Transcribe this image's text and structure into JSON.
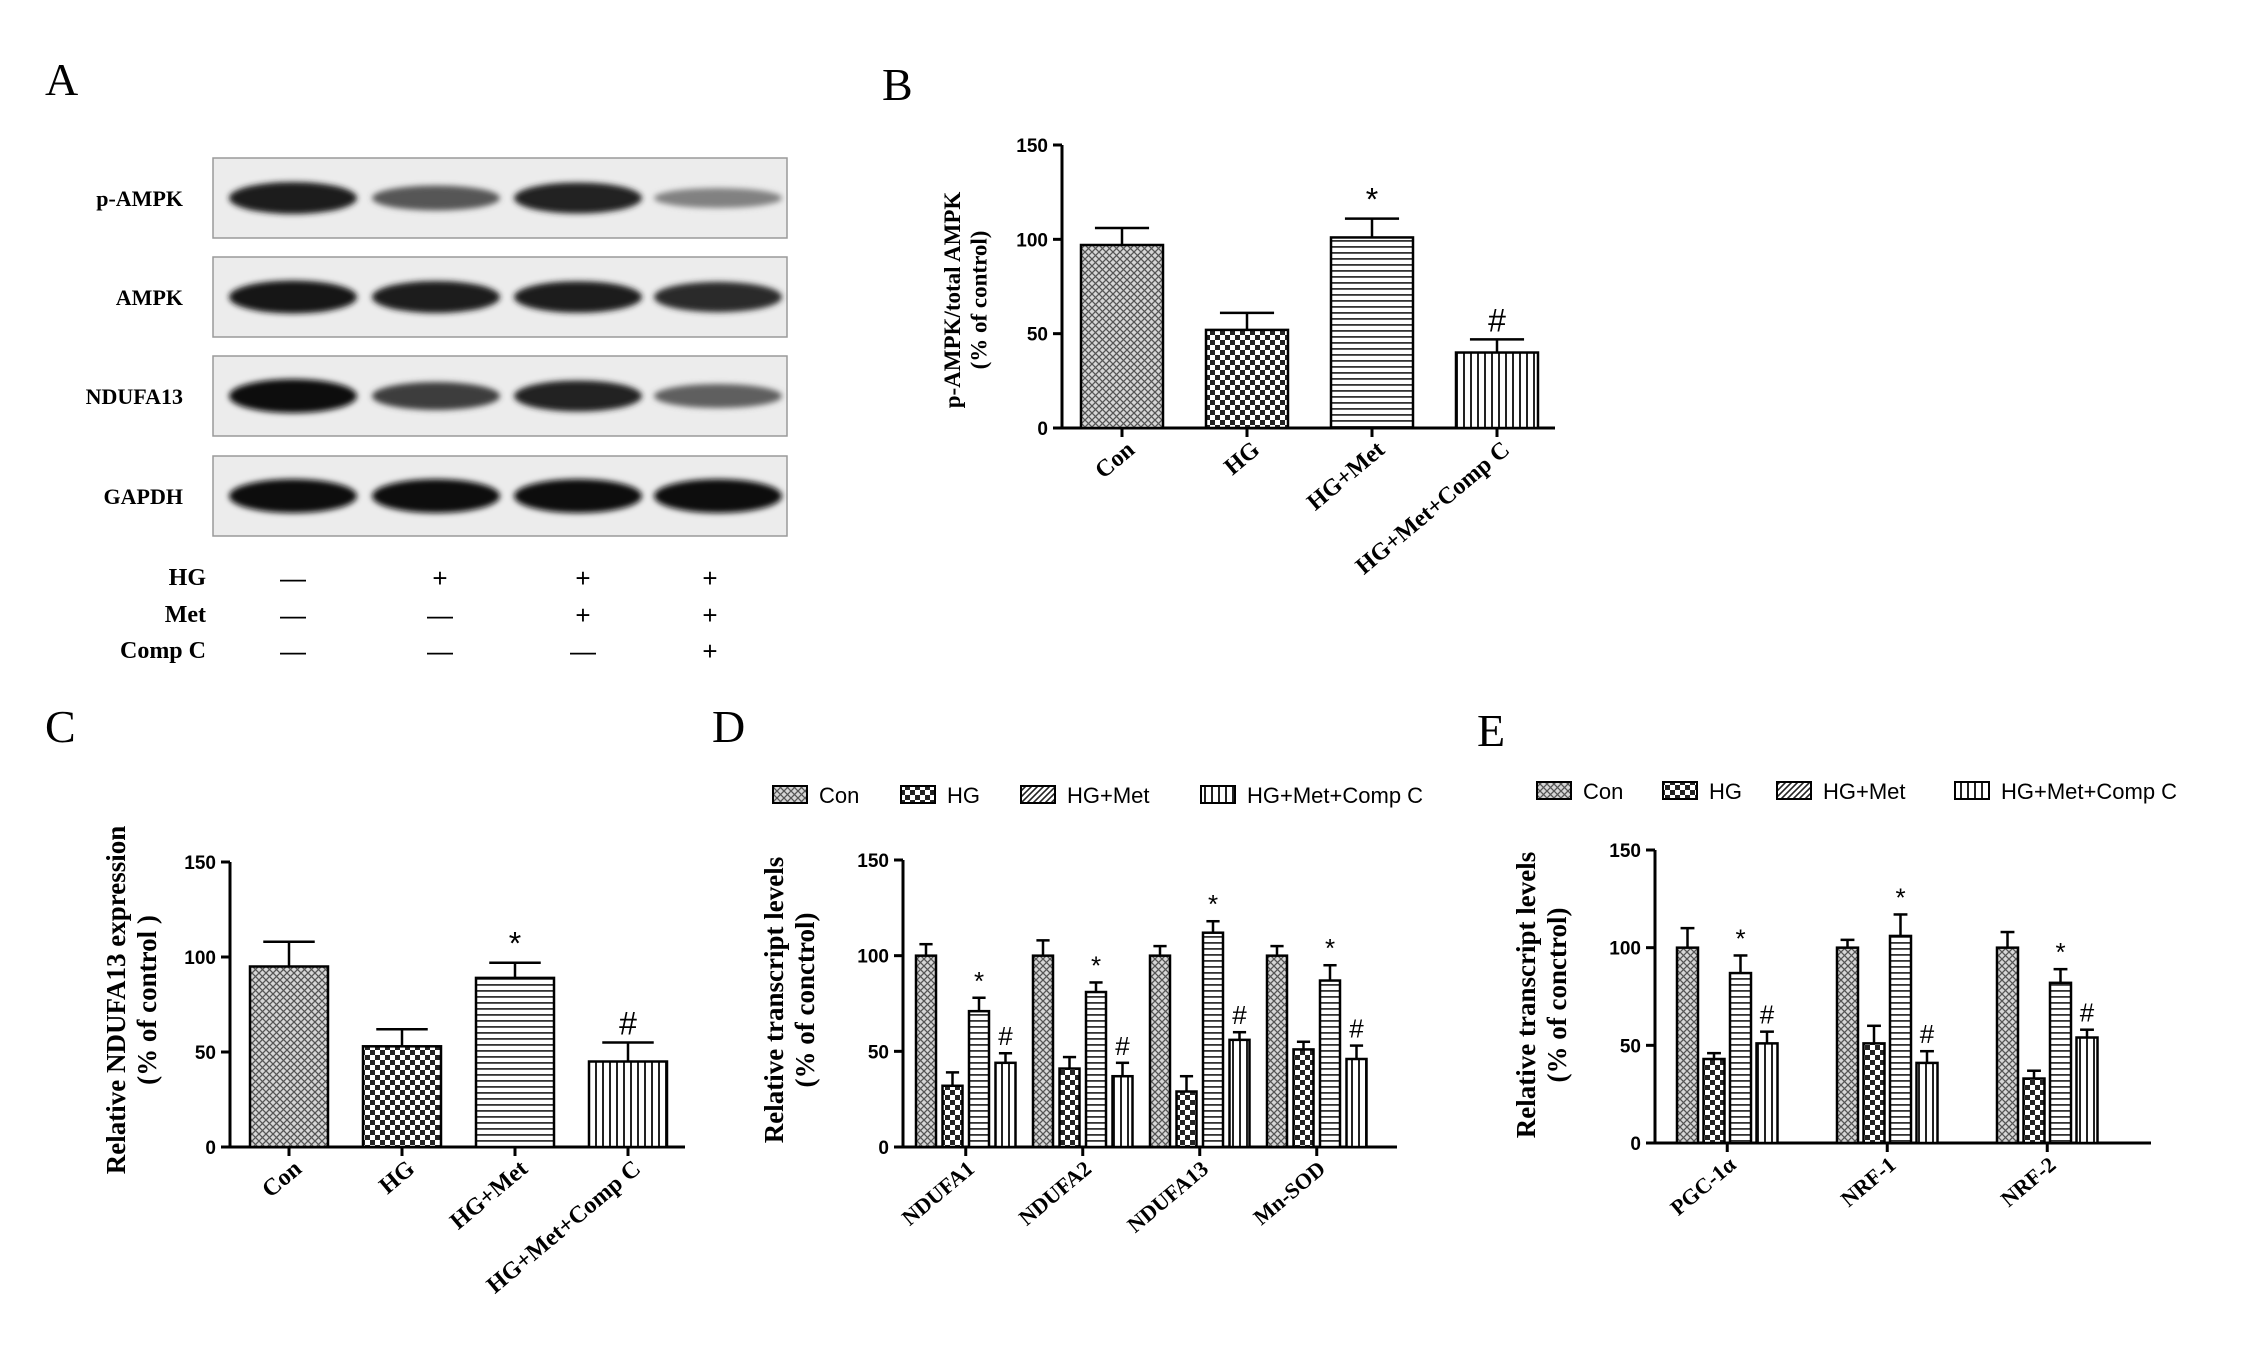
{
  "panels": {
    "A": {
      "letter": "A",
      "blot_labels": [
        "p-AMPK",
        "AMPK",
        "NDUFA13",
        "GAPDH"
      ],
      "treatments": [
        {
          "name": "HG",
          "signs": [
            "—",
            "+",
            "+",
            "+"
          ]
        },
        {
          "name": "Met",
          "signs": [
            "—",
            "—",
            "+",
            "+"
          ]
        },
        {
          "name": "Comp C",
          "signs": [
            "—",
            "—",
            "—",
            "+"
          ]
        }
      ],
      "band_intensity": [
        [
          0.9,
          0.55,
          0.85,
          0.3
        ],
        [
          0.95,
          0.9,
          0.88,
          0.82
        ],
        [
          1.0,
          0.7,
          0.85,
          0.5
        ],
        [
          1.0,
          1.0,
          1.0,
          1.0
        ]
      ]
    },
    "B": {
      "letter": "B"
    },
    "C": {
      "letter": "C"
    },
    "D": {
      "letter": "D"
    },
    "E": {
      "letter": "E"
    }
  },
  "patterns": {
    "Con": "crosshatch",
    "HG": "checker",
    "HG+Met": "horizontal",
    "HG+Met+Comp C": "vertical"
  },
  "legend_patterns": {
    "Con": "crosshatch",
    "HG": "checker",
    "HG+Met": "diagonal",
    "HG+Met+Comp C": "vertical"
  },
  "chart_data": [
    {
      "panel": "B",
      "type": "bar",
      "categories": [
        "Con",
        "HG",
        "HG+Met",
        "HG+Met+Comp C"
      ],
      "values": [
        97,
        52,
        101,
        40
      ],
      "errors": [
        9,
        9,
        10,
        7
      ],
      "annotations": [
        "",
        "",
        "*",
        "#"
      ],
      "ylabel": "p-AMPK/total AMPK",
      "ylabel2": "(% of control)",
      "ylim": [
        0,
        150
      ],
      "yticks": [
        0,
        50,
        100,
        150
      ]
    },
    {
      "panel": "C",
      "type": "bar",
      "categories": [
        "Con",
        "HG",
        "HG+Met",
        "HG+Met+Comp C"
      ],
      "values": [
        95,
        53,
        89,
        45
      ],
      "errors": [
        13,
        9,
        8,
        10
      ],
      "annotations": [
        "",
        "",
        "*",
        "#"
      ],
      "ylabel": "Relative NDUFA13 expression",
      "ylabel2": "(% of control )",
      "ylim": [
        0,
        150
      ],
      "yticks": [
        0,
        50,
        100,
        150
      ]
    },
    {
      "panel": "D",
      "type": "bar",
      "categories": [
        "NDUFA1",
        "NDUFA2",
        "NDUFA13",
        "Mn-SOD"
      ],
      "series": [
        {
          "name": "Con",
          "values": [
            100,
            100,
            100,
            100
          ],
          "errors": [
            6,
            8,
            5,
            5
          ],
          "annotations": [
            "",
            "",
            "",
            ""
          ]
        },
        {
          "name": "HG",
          "values": [
            32,
            41,
            29,
            51
          ],
          "errors": [
            7,
            6,
            8,
            4
          ],
          "annotations": [
            "",
            "",
            "",
            ""
          ]
        },
        {
          "name": "HG+Met",
          "values": [
            71,
            81,
            112,
            87
          ],
          "errors": [
            7,
            5,
            6,
            8
          ],
          "annotations": [
            "*",
            "*",
            "*",
            "*"
          ]
        },
        {
          "name": "HG+Met+Comp C",
          "values": [
            44,
            37,
            56,
            46
          ],
          "errors": [
            5,
            7,
            4,
            7
          ],
          "annotations": [
            "#",
            "#",
            "#",
            "#"
          ]
        }
      ],
      "ylabel": "Relative transcript levels",
      "ylabel2": "(% of conctrol)",
      "ylim": [
        0,
        150
      ],
      "yticks": [
        0,
        50,
        100,
        150
      ]
    },
    {
      "panel": "E",
      "type": "bar",
      "categories": [
        "PGC-1α",
        "NRF-1",
        "NRF-2"
      ],
      "series": [
        {
          "name": "Con",
          "values": [
            100,
            100,
            100
          ],
          "errors": [
            10,
            4,
            8
          ],
          "annotations": [
            "",
            "",
            ""
          ]
        },
        {
          "name": "HG",
          "values": [
            43,
            51,
            33
          ],
          "errors": [
            3,
            9,
            4
          ],
          "annotations": [
            "",
            "",
            ""
          ]
        },
        {
          "name": "HG+Met",
          "values": [
            87,
            106,
            82
          ],
          "errors": [
            9,
            11,
            7
          ],
          "annotations": [
            "*",
            "*",
            "*"
          ]
        },
        {
          "name": "HG+Met+Comp C",
          "values": [
            51,
            41,
            54
          ],
          "errors": [
            6,
            6,
            4
          ],
          "annotations": [
            "#",
            "#",
            "#"
          ]
        }
      ],
      "ylabel": "Relative transcript levels",
      "ylabel2": "(% of conctrol)",
      "ylim": [
        0,
        150
      ],
      "yticks": [
        0,
        50,
        100,
        150
      ]
    }
  ]
}
